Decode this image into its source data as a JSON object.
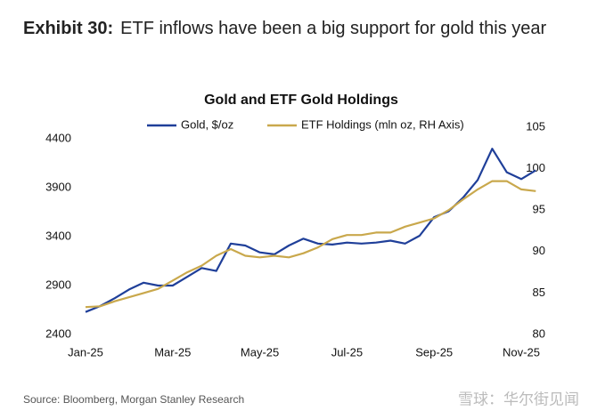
{
  "header": {
    "label": "Exhibit 30:",
    "title": "ETF inflows have been a big support for gold this year"
  },
  "chart_data": {
    "type": "line",
    "title": "Gold and ETF Gold Holdings",
    "categories": [
      "Jan-25",
      null,
      null,
      null,
      null,
      null,
      "Mar-25",
      null,
      null,
      null,
      null,
      null,
      "May-25",
      null,
      null,
      null,
      null,
      null,
      "Jul-25",
      null,
      null,
      null,
      null,
      null,
      "Sep-25",
      null,
      null,
      null,
      null,
      null,
      "Nov-25",
      null
    ],
    "series": [
      {
        "name": "Gold, $/oz",
        "color": "#1f3f99",
        "values": [
          2630,
          2690,
          2770,
          2860,
          2930,
          2900,
          2900,
          2990,
          3080,
          3050,
          3330,
          3310,
          3240,
          3220,
          3310,
          3380,
          3330,
          3320,
          3340,
          3330,
          3340,
          3360,
          3330,
          3410,
          3600,
          3660,
          3800,
          3980,
          4300,
          4060,
          3990,
          4080
        ]
      },
      {
        "name": "ETF Holdings (mln oz, RH Axis)",
        "color": "#c9a84c",
        "axis": "y2",
        "values": [
          83.3,
          83.4,
          84,
          84.5,
          85,
          85.5,
          86.5,
          87.5,
          88.3,
          89.5,
          90.3,
          89.5,
          89.3,
          89.5,
          89.3,
          89.8,
          90.5,
          91.5,
          92,
          92,
          92.3,
          92.3,
          93,
          93.5,
          94,
          95,
          96.3,
          97.5,
          98.5,
          98.5,
          97.5,
          97.3
        ]
      }
    ],
    "ylim": [
      2400,
      4520
    ],
    "yticks": [
      2400,
      2900,
      3400,
      3900,
      4400
    ],
    "y2lim": [
      80,
      105
    ],
    "y2ticks": [
      80,
      85,
      90,
      95,
      100,
      105
    ],
    "grid": false,
    "legend": "top"
  },
  "source": "Source: Bloomberg, Morgan Stanley Research",
  "watermark": "雪球：华尔街见闻"
}
